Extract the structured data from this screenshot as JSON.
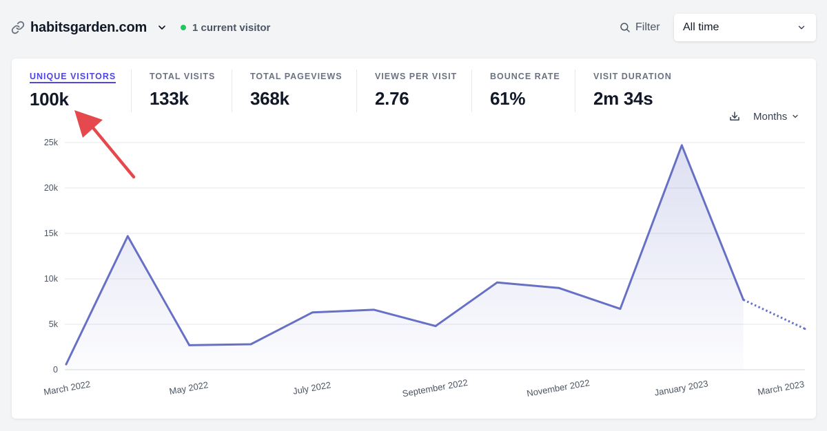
{
  "header": {
    "site_name": "habitsgarden.com",
    "current_visitors": "1 current visitor",
    "filter_label": "Filter",
    "period_label": "All time"
  },
  "metrics": [
    {
      "label": "UNIQUE VISITORS",
      "value": "100k",
      "active": true
    },
    {
      "label": "TOTAL VISITS",
      "value": "133k",
      "active": false
    },
    {
      "label": "TOTAL PAGEVIEWS",
      "value": "368k",
      "active": false
    },
    {
      "label": "VIEWS PER VISIT",
      "value": "2.76",
      "active": false
    },
    {
      "label": "BOUNCE RATE",
      "value": "61%",
      "active": false
    },
    {
      "label": "VISIT DURATION",
      "value": "2m 34s",
      "active": false
    }
  ],
  "chart_controls": {
    "interval_label": "Months",
    "download_icon": "download-icon"
  },
  "colors": {
    "accent": "#4f46e5",
    "line": "#6670c4",
    "live_dot": "#22c55e",
    "arrow": "#e5484d"
  },
  "chart_data": {
    "type": "area",
    "x": [
      "March 2022",
      "April 2022",
      "May 2022",
      "June 2022",
      "July 2022",
      "August 2022",
      "September 2022",
      "October 2022",
      "November 2022",
      "December 2022",
      "January 2023",
      "February 2023",
      "March 2023"
    ],
    "x_tick_labels": [
      "March 2022",
      "May 2022",
      "July 2022",
      "September 2022",
      "November 2022",
      "January 2023",
      "March 2023"
    ],
    "series": [
      {
        "values": [
          600,
          14700,
          2700,
          2800,
          6300,
          6600,
          4800,
          9600,
          9000,
          6700,
          24700,
          7700,
          4500
        ],
        "dashed_from_index": 11
      }
    ],
    "y_ticks": [
      0,
      5000,
      10000,
      15000,
      20000,
      25000
    ],
    "y_tick_labels": [
      "0",
      "5k",
      "10k",
      "15k",
      "20k",
      "25k"
    ],
    "ylim": [
      0,
      25000
    ],
    "grid": true,
    "title": "",
    "xlabel": "",
    "ylabel": ""
  }
}
